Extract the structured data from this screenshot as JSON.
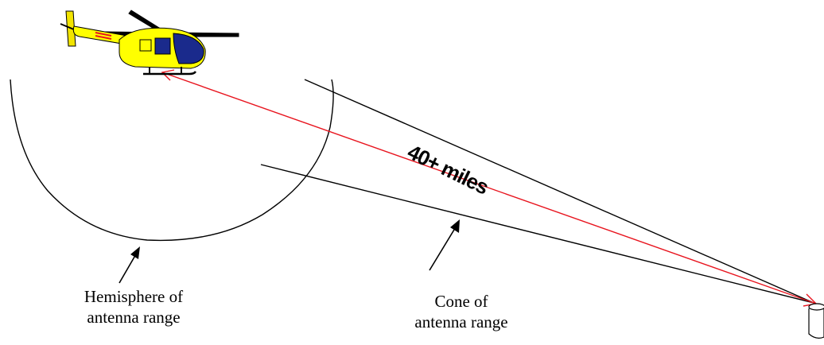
{
  "distance_label": "40+ miles",
  "hemisphere_label": {
    "line1": "Hemisphere of",
    "line2": "antenna range"
  },
  "cone_label": {
    "line1": "Cone of",
    "line2": "antenna range"
  },
  "colors": {
    "signal_line": "#e8141e",
    "helicopter_body": "#ffff00",
    "helicopter_canopy": "#1a2a8c",
    "outline": "#000000"
  },
  "icons": {
    "helicopter": "helicopter-icon",
    "antenna": "antenna-cylinder-icon"
  }
}
